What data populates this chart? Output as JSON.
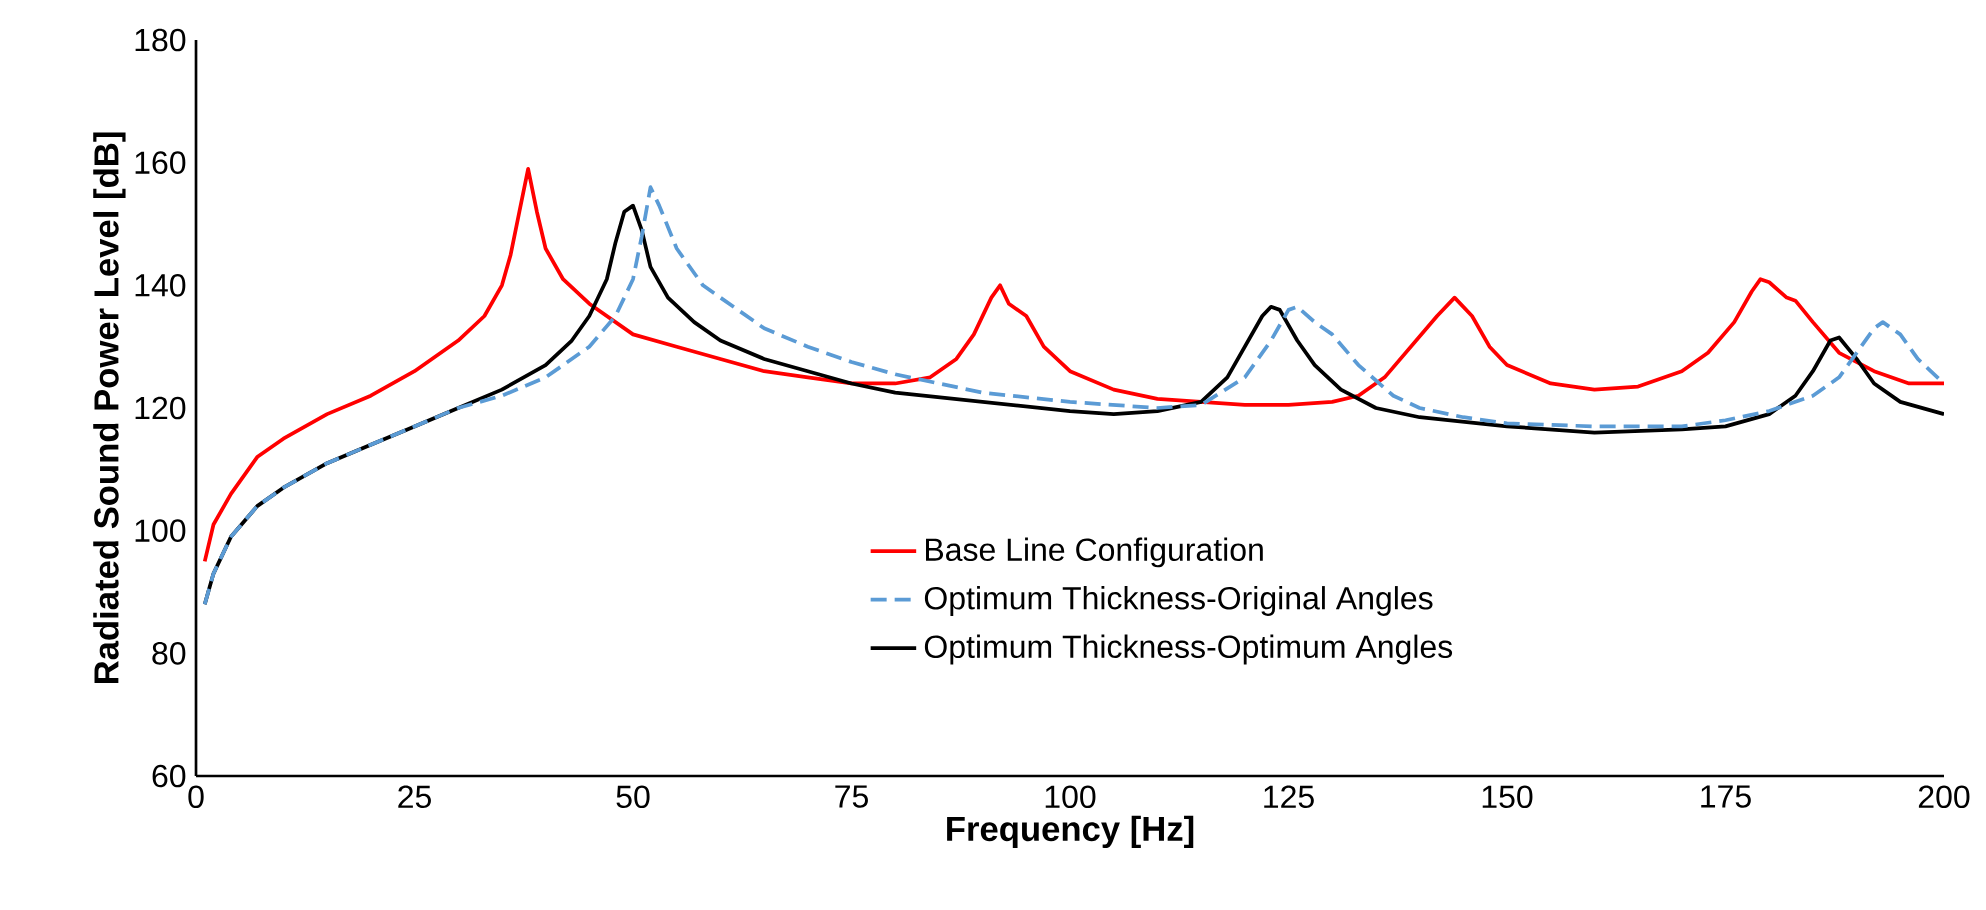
{
  "chart_data": {
    "type": "line",
    "xlabel": "Frequency [Hz]",
    "ylabel": "Radiated Sound Power Level [dB]",
    "xlim": [
      0,
      200
    ],
    "xticks": [
      0,
      25,
      50,
      75,
      100,
      125,
      150,
      175,
      200
    ],
    "ylim": [
      60,
      180
    ],
    "yticks": [
      60,
      80,
      100,
      120,
      140,
      160,
      180
    ],
    "grid": false,
    "legend": "bottom",
    "marker": "none",
    "series": [
      {
        "name": "Base Line Configuration",
        "color": "#ff0000",
        "line_style": "solid",
        "x": [
          1,
          2,
          4,
          7,
          10,
          15,
          20,
          25,
          30,
          33,
          35,
          36,
          37,
          38,
          39,
          40,
          42,
          45,
          50,
          55,
          60,
          65,
          70,
          75,
          80,
          84,
          87,
          89,
          91,
          92,
          93,
          94,
          95,
          97,
          100,
          105,
          110,
          115,
          120,
          125,
          130,
          133,
          136,
          139,
          142,
          144,
          146,
          148,
          150,
          155,
          160,
          165,
          170,
          173,
          176,
          178,
          179,
          180,
          182,
          183,
          185,
          188,
          192,
          196,
          200
        ],
        "values": [
          95,
          101,
          106,
          112,
          115,
          119,
          122,
          126,
          131,
          135,
          140,
          145,
          152,
          159,
          152,
          146,
          141,
          137,
          132,
          130,
          128,
          126,
          125,
          124,
          124,
          125,
          128,
          132,
          138,
          140,
          137,
          136,
          135,
          130,
          126,
          123,
          121.5,
          121,
          120.5,
          120.5,
          121,
          122,
          125,
          130,
          135,
          138,
          135,
          130,
          127,
          124,
          123,
          123.5,
          126,
          129,
          134,
          139,
          141,
          140.5,
          138,
          137.5,
          134,
          129,
          126,
          124,
          124
        ]
      },
      {
        "name": "Optimum Thickness-Original Angles",
        "color": "#5b9bd5",
        "line_style": "dashed",
        "x": [
          1,
          2,
          4,
          7,
          10,
          15,
          20,
          25,
          30,
          35,
          40,
          45,
          48,
          50,
          51,
          52,
          53,
          55,
          58,
          62,
          65,
          70,
          75,
          80,
          85,
          90,
          100,
          110,
          115,
          120,
          123,
          125,
          126,
          128,
          130,
          133,
          137,
          140,
          145,
          150,
          160,
          170,
          175,
          180,
          185,
          188,
          190,
          192,
          193,
          195,
          197,
          200
        ],
        "values": [
          88,
          93,
          99,
          104,
          107,
          111,
          114,
          117,
          120,
          122,
          125,
          130,
          135,
          141,
          148,
          156,
          153,
          146,
          140,
          136,
          133,
          130,
          127.5,
          125.5,
          124,
          122.5,
          121,
          120,
          120.5,
          125,
          131,
          136,
          136.5,
          134,
          132,
          127,
          122,
          120,
          118.5,
          117.5,
          117,
          117,
          118,
          119.5,
          122,
          125,
          129,
          133,
          134,
          132,
          128,
          124
        ]
      },
      {
        "name": "Optimum Thickness-Optimum Angles",
        "color": "#000000",
        "line_style": "solid",
        "x": [
          1,
          2,
          4,
          7,
          10,
          15,
          20,
          25,
          30,
          35,
          40,
          43,
          45,
          47,
          48,
          49,
          50,
          51,
          52,
          54,
          57,
          60,
          65,
          70,
          75,
          80,
          90,
          100,
          105,
          110,
          115,
          118,
          120,
          122,
          123,
          124,
          126,
          128,
          131,
          135,
          140,
          150,
          160,
          170,
          175,
          180,
          183,
          185,
          187,
          188,
          190,
          192,
          195,
          200
        ],
        "values": [
          88,
          93,
          99,
          104,
          107,
          111,
          114,
          117,
          120,
          123,
          127,
          131,
          135,
          141,
          147,
          152,
          153,
          149,
          143,
          138,
          134,
          131,
          128,
          126,
          124,
          122.5,
          121,
          119.5,
          119,
          119.5,
          121,
          125,
          130,
          135,
          136.5,
          136,
          131,
          127,
          123,
          120,
          118.5,
          117,
          116,
          116.5,
          117,
          119,
          122,
          126,
          131,
          131.5,
          128,
          124,
          121,
          119
        ]
      }
    ]
  }
}
